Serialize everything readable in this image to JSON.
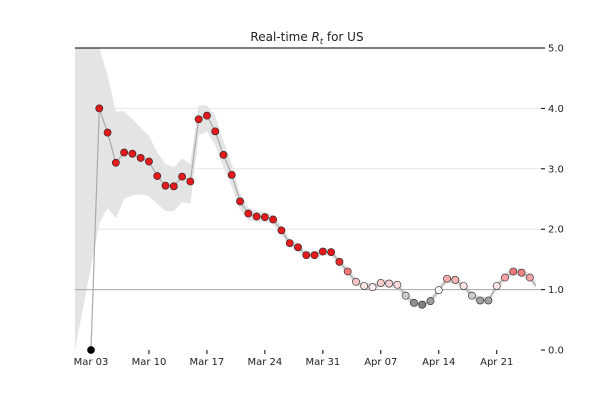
{
  "chart_data": {
    "type": "line",
    "title_prefix": "Real-time ",
    "title_symbol": "R",
    "title_subscript": "t",
    "title_suffix": " for US",
    "xlabel": "",
    "ylabel": "",
    "ylim": [
      0,
      5
    ],
    "y_axis_side": "right",
    "grid": "horizontal",
    "reference_line": 1.0,
    "yticks": [
      "0.0",
      "1.0",
      "2.0",
      "3.0",
      "4.0",
      "5.0"
    ],
    "xticks": [
      "Mar 03",
      "Mar 10",
      "Mar 17",
      "Mar 24",
      "Mar 31",
      "Apr 07",
      "Apr 14",
      "Apr 21"
    ],
    "x_start": "Mar 03",
    "x_end": "Apr 26",
    "series": [
      {
        "values": [
          0.0,
          4.0,
          3.6,
          3.1,
          3.27,
          3.25,
          3.18,
          3.12,
          2.88,
          2.72,
          2.71,
          2.87,
          2.79,
          3.82,
          3.88,
          3.62,
          3.23,
          2.9,
          2.46,
          2.26,
          2.21,
          2.2,
          2.16,
          1.98,
          1.77,
          1.7,
          1.57,
          1.57,
          1.63,
          1.62,
          1.46,
          1.3,
          1.13,
          1.06,
          1.04,
          1.11,
          1.1,
          1.08,
          0.9,
          0.78,
          0.75,
          0.81,
          0.99,
          1.18,
          1.16,
          1.06,
          0.9,
          0.82,
          0.82,
          1.06,
          1.2,
          1.3,
          1.28,
          1.2
        ],
        "line_extension_end": 1.06
      }
    ],
    "credible_interval": {
      "upper": [
        5.0,
        5.0,
        4.55,
        3.95,
        3.95,
        3.82,
        3.68,
        3.55,
        3.27,
        3.08,
        3.02,
        3.17,
        3.08,
        4.05,
        4.05,
        3.88,
        3.45,
        3.08,
        2.6,
        2.36,
        2.3,
        2.28,
        2.24,
        2.05,
        1.84,
        1.76,
        1.63,
        1.63,
        1.69,
        1.68,
        1.52,
        1.36,
        1.19,
        1.12,
        1.1,
        1.17,
        1.16,
        1.14,
        0.96,
        0.84,
        0.81,
        0.87,
        1.05,
        1.24,
        1.22,
        1.12,
        0.96,
        0.88,
        0.88,
        1.12,
        1.26,
        1.36,
        1.34,
        1.26
      ],
      "lower": [
        0.0,
        2.1,
        2.35,
        2.18,
        2.5,
        2.56,
        2.58,
        2.55,
        2.42,
        2.3,
        2.3,
        2.45,
        2.42,
        3.55,
        3.62,
        3.4,
        3.02,
        2.7,
        2.32,
        2.15,
        2.12,
        2.12,
        2.08,
        1.91,
        1.7,
        1.64,
        1.51,
        1.51,
        1.57,
        1.56,
        1.4,
        1.24,
        1.07,
        1.0,
        0.98,
        1.05,
        1.04,
        1.02,
        0.84,
        0.72,
        0.69,
        0.75,
        0.93,
        1.12,
        1.1,
        1.0,
        0.84,
        0.76,
        0.76,
        1.0,
        1.14,
        1.24,
        1.22,
        1.14
      ]
    },
    "colors": {
      "background": "#ffffff",
      "band": "#e4e4e4",
      "line": "#aaaaaa",
      "low": "#000000",
      "mid": "#ffffff",
      "high": "#e31a1c",
      "dot_stroke": "#222222",
      "reference": "#aaaaaa",
      "axis": "#000000"
    }
  }
}
